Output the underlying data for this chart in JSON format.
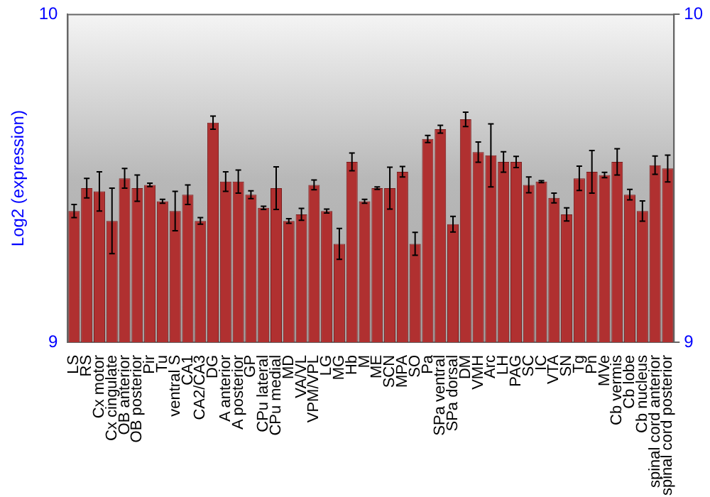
{
  "chart_data": {
    "type": "bar",
    "ylabel": "Log2 (expression)",
    "categories": [
      "LS",
      "RS",
      "Cx motor",
      "Cx cingulate",
      "OB anterior",
      "OB posterior",
      "Pir",
      "Tu",
      "ventral S",
      "CA1",
      "CA2/CA3",
      "DG",
      "A anterior",
      "A posterior",
      "GP",
      "CPu lateral",
      "CPu medial",
      "MD",
      "VA/VL",
      "VPM/VPL",
      "LG",
      "MG",
      "Hb",
      "M",
      "ME",
      "SCN",
      "MPA",
      "SO",
      "Pa",
      "SPa ventral",
      "SPa dorsal",
      "DM",
      "VMH",
      "Arc",
      "LH",
      "PAG",
      "SC",
      "IC",
      "VTA",
      "SN",
      "Tg",
      "Pn",
      "MVe",
      "Cb vermis",
      "Cb lobe",
      "Cb nucleus",
      "spinal cord anterior",
      "spinal cord posterior"
    ],
    "values": [
      9.4,
      9.47,
      9.46,
      9.37,
      9.5,
      9.47,
      9.48,
      9.43,
      9.4,
      9.45,
      9.37,
      9.67,
      9.49,
      9.49,
      9.45,
      9.41,
      9.47,
      9.37,
      9.39,
      9.48,
      9.4,
      9.3,
      9.55,
      9.43,
      9.47,
      9.47,
      9.52,
      9.3,
      9.62,
      9.65,
      9.36,
      9.68,
      9.58,
      9.57,
      9.55,
      9.55,
      9.48,
      9.49,
      9.44,
      9.39,
      9.5,
      9.52,
      9.51,
      9.55,
      9.45,
      9.4,
      9.54,
      9.53
    ],
    "errors": [
      0.02,
      0.03,
      0.06,
      0.1,
      0.03,
      0.04,
      0.005,
      0.006,
      0.06,
      0.03,
      0.01,
      0.02,
      0.03,
      0.035,
      0.012,
      0.005,
      0.065,
      0.007,
      0.018,
      0.015,
      0.006,
      0.047,
      0.027,
      0.006,
      0.004,
      0.064,
      0.016,
      0.035,
      0.011,
      0.012,
      0.024,
      0.022,
      0.031,
      0.096,
      0.031,
      0.017,
      0.024,
      0.003,
      0.015,
      0.02,
      0.037,
      0.065,
      0.008,
      0.04,
      0.016,
      0.031,
      0.028,
      0.041
    ],
    "color": "#b03030",
    "ylim": [
      9,
      10
    ],
    "yticks": [
      9,
      10
    ],
    "y2lim": [
      9,
      10
    ],
    "y2ticks": [
      9,
      10
    ],
    "grid": false,
    "legend": false
  }
}
